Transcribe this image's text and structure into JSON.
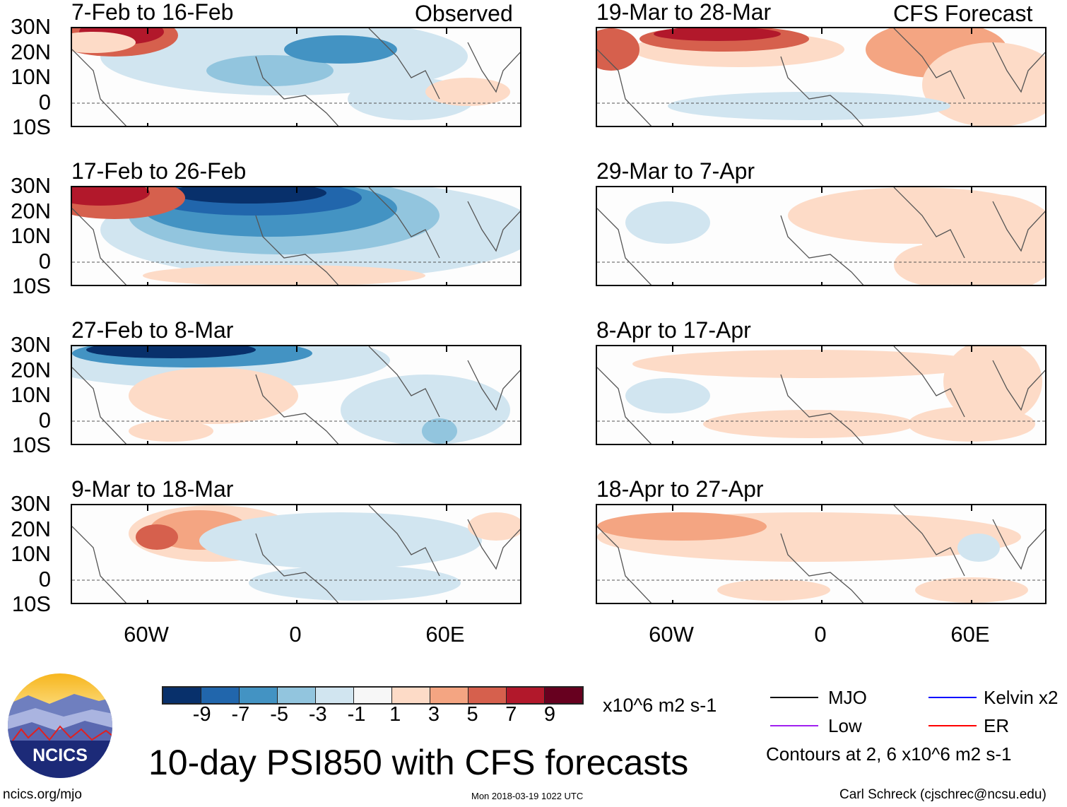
{
  "panels_left_header": "Observed",
  "panels_right_header": "CFS Forecast",
  "left_panels": [
    {
      "title": "7-Feb to 16-Feb"
    },
    {
      "title": "17-Feb to 26-Feb"
    },
    {
      "title": "27-Feb to 8-Mar"
    },
    {
      "title": "9-Mar to 18-Mar"
    }
  ],
  "right_panels": [
    {
      "title": "19-Mar to 28-Mar"
    },
    {
      "title": "29-Mar to 7-Apr"
    },
    {
      "title": "8-Apr to 17-Apr"
    },
    {
      "title": "18-Apr to 27-Apr"
    }
  ],
  "lat_labels": [
    "30N",
    "20N",
    "10N",
    "0",
    "10S"
  ],
  "lon_labels": [
    "60W",
    "0",
    "60E"
  ],
  "colorbar": {
    "colors": [
      "#08306b",
      "#2166ac",
      "#4393c3",
      "#92c5de",
      "#d1e5f0",
      "#f7f7f7",
      "#fddbc7",
      "#f4a582",
      "#d6604d",
      "#b2182b",
      "#67001f"
    ],
    "labels": [
      "-9",
      "-7",
      "-5",
      "-3",
      "-1",
      "1",
      "3",
      "5",
      "7",
      "9"
    ],
    "units": "x10^6 m2 s-1"
  },
  "title": "10-day PSI850 with CFS forecasts",
  "legend": {
    "items": [
      {
        "label": "MJO",
        "color": "#000000"
      },
      {
        "label": "Kelvin x2",
        "color": "#0000ff"
      },
      {
        "label": "Low",
        "color": "#a020f0"
      },
      {
        "label": "ER",
        "color": "#ff0000"
      }
    ],
    "note": "Contours at 2, 6 x10^6 m2 s-1"
  },
  "logo_text": "NCICS",
  "footer": {
    "url": "ncics.org/mjo",
    "timestamp": "Mon 2018-03-19 1022 UTC",
    "credit": "Carl Schreck (cjschrec@ncsu.edu)"
  }
}
